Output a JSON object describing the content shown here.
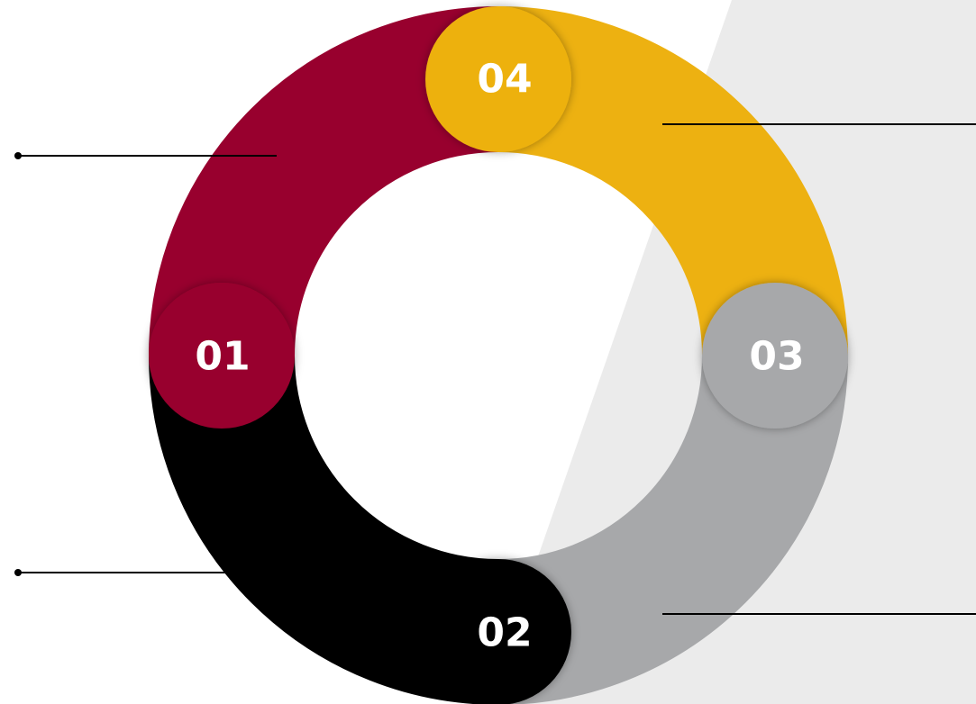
{
  "nodes": [
    {
      "label": "01"
    },
    {
      "label": "02"
    },
    {
      "label": "03"
    },
    {
      "label": "04"
    }
  ]
}
